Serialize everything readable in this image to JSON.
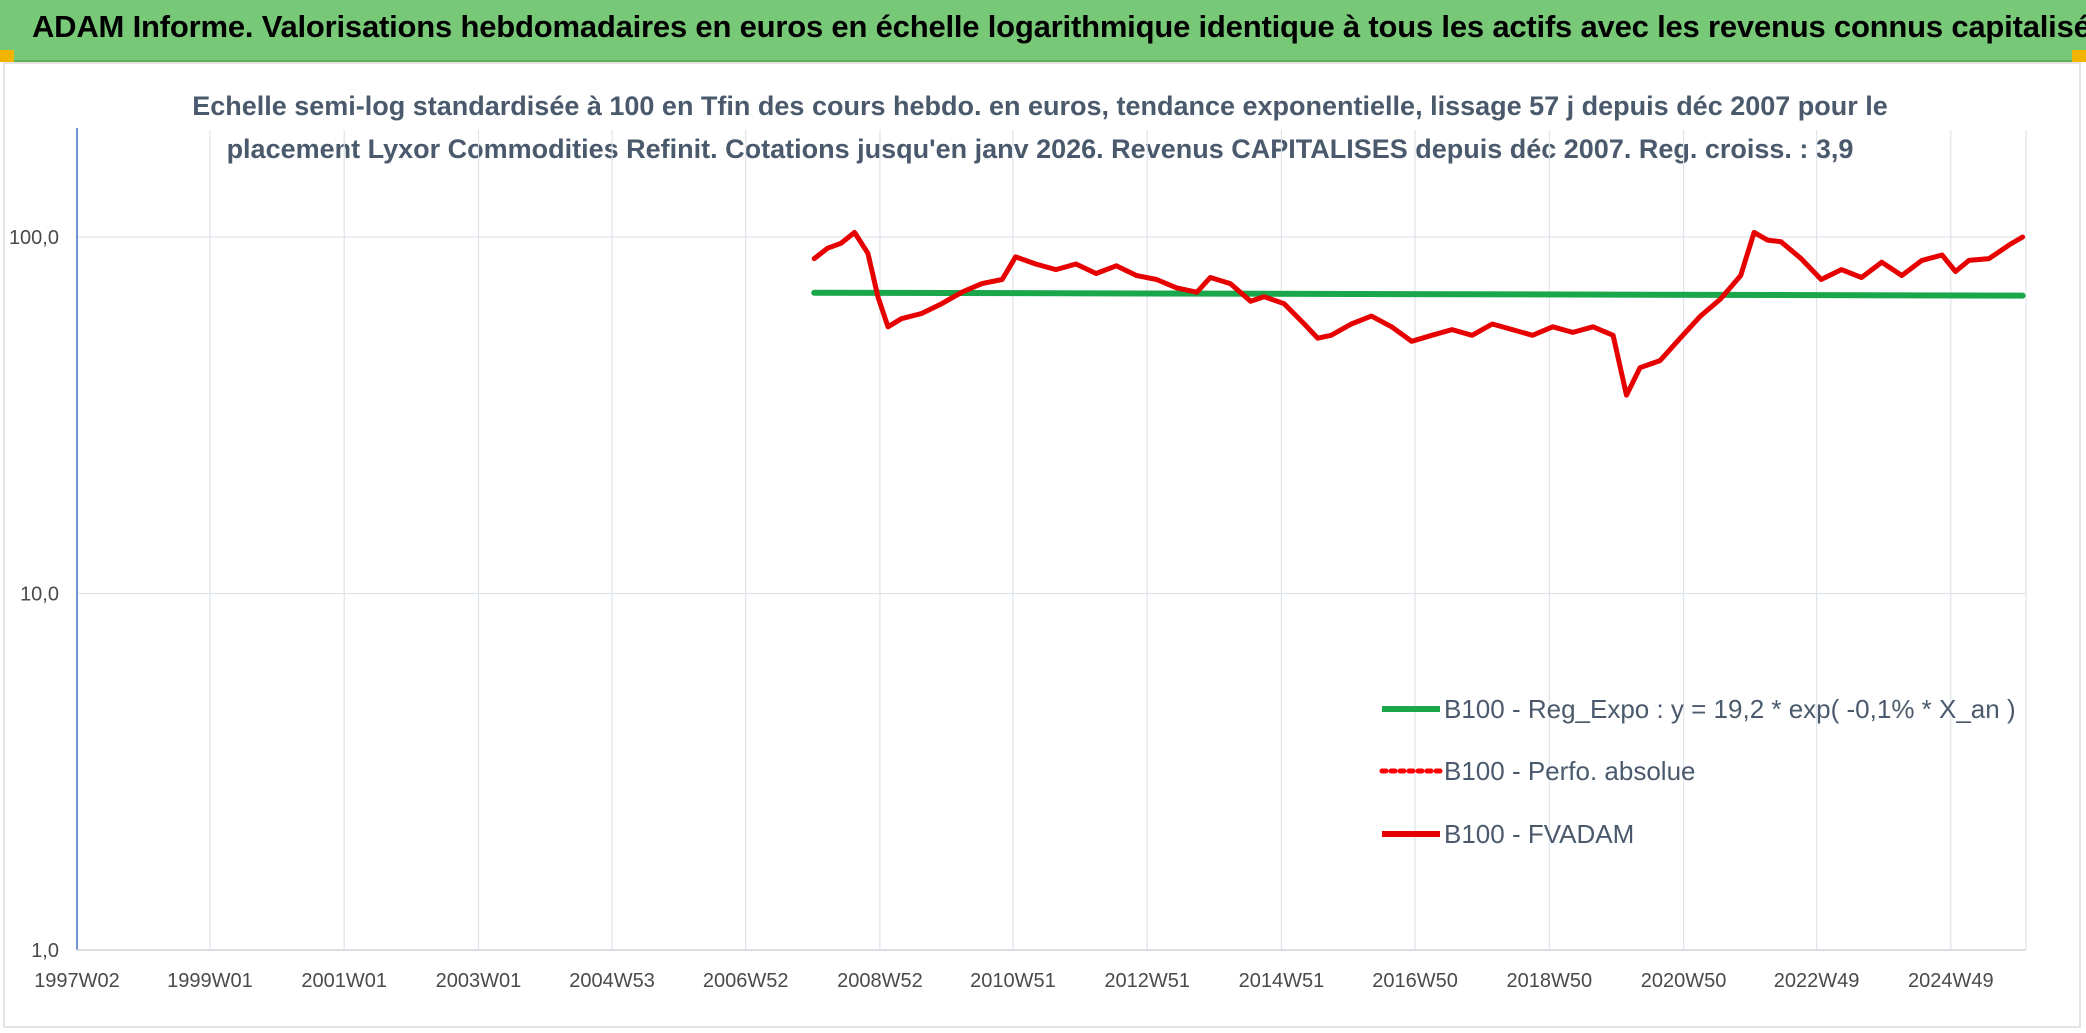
{
  "header": {
    "title": "ADAM Informe. Valorisations hebdomadaires en euros en échelle logarithmique identique à tous les actifs avec les revenus connus capitalisés",
    "background_color": "#77c877"
  },
  "chart_data": {
    "type": "line",
    "title_lines": [
      "Echelle semi-log standardisée à 100 en Tfin des cours hebdo. en euros, tendance exponentielle, lissage 57 j depuis déc 2007 pour le",
      "placement Lyxor Commodities Refinit. Cotations jusqu'en janv 2026. Revenus CAPITALISES depuis déc 2007. Reg. croiss. : 3,9"
    ],
    "y_scale": "log",
    "ylim": [
      1,
      100
    ],
    "y_ticks": [
      {
        "value": 100,
        "label": "100,0"
      },
      {
        "value": 10,
        "label": "10,0"
      },
      {
        "value": 1,
        "label": "1,0"
      }
    ],
    "x_range": [
      1997.02,
      2026.05
    ],
    "x_ticks": [
      {
        "value": 1997.02,
        "label": "1997W02"
      },
      {
        "value": 1999.0,
        "label": "1999W01"
      },
      {
        "value": 2001.0,
        "label": "2001W01"
      },
      {
        "value": 2003.0,
        "label": "2003W01"
      },
      {
        "value": 2004.99,
        "label": "2004W53"
      },
      {
        "value": 2006.98,
        "label": "2006W52"
      },
      {
        "value": 2008.98,
        "label": "2008W52"
      },
      {
        "value": 2010.96,
        "label": "2010W51"
      },
      {
        "value": 2012.96,
        "label": "2012W51"
      },
      {
        "value": 2014.96,
        "label": "2014W51"
      },
      {
        "value": 2016.95,
        "label": "2016W50"
      },
      {
        "value": 2018.95,
        "label": "2018W50"
      },
      {
        "value": 2020.95,
        "label": "2020W50"
      },
      {
        "value": 2022.93,
        "label": "2022W49"
      },
      {
        "value": 2024.93,
        "label": "2024W49"
      }
    ],
    "grid": true,
    "legend_position": "lower-right",
    "series": [
      {
        "name": "B100 - Reg_Expo : y = 19,2 * exp( -0,1% *  X_an )",
        "color": "#1aa64a",
        "style": "solid",
        "x": [
          2008.0,
          2026.0
        ],
        "y": [
          69.8,
          68.5
        ]
      },
      {
        "name": "B100 - Perfo. absolue",
        "color": "#ff0000",
        "style": "dotted",
        "x": [],
        "y": []
      },
      {
        "name": "B100 - FVADAM",
        "color": "#e60000",
        "style": "solid",
        "x": [
          2008.0,
          2008.2,
          2008.4,
          2008.6,
          2008.8,
          2008.95,
          2009.1,
          2009.3,
          2009.6,
          2009.9,
          2010.2,
          2010.5,
          2010.8,
          2011.0,
          2011.3,
          2011.6,
          2011.9,
          2012.2,
          2012.5,
          2012.8,
          2013.1,
          2013.4,
          2013.7,
          2013.9,
          2014.2,
          2014.5,
          2014.7,
          2015.0,
          2015.3,
          2015.5,
          2015.7,
          2016.0,
          2016.3,
          2016.6,
          2016.9,
          2017.2,
          2017.5,
          2017.8,
          2018.1,
          2018.4,
          2018.7,
          2019.0,
          2019.3,
          2019.6,
          2019.9,
          2020.1,
          2020.3,
          2020.6,
          2020.9,
          2021.2,
          2021.5,
          2021.8,
          2022.0,
          2022.2,
          2022.4,
          2022.7,
          2023.0,
          2023.3,
          2023.6,
          2023.9,
          2024.2,
          2024.5,
          2024.8,
          2025.0,
          2025.2,
          2025.5,
          2025.8,
          2026.0
        ],
        "y": [
          87,
          93,
          96,
          103,
          90,
          68,
          56,
          59,
          61,
          65,
          70,
          74,
          76,
          88,
          84,
          81,
          84,
          79,
          83,
          78,
          76,
          72,
          70,
          77,
          74,
          66,
          68,
          65,
          57,
          52,
          53,
          57,
          60,
          56,
          51,
          53,
          55,
          53,
          57,
          55,
          53,
          56,
          54,
          56,
          53,
          36,
          43,
          45,
          52,
          60,
          67,
          78,
          103,
          98,
          97,
          87,
          76,
          81,
          77,
          85,
          78,
          86,
          89,
          80,
          86,
          87,
          95,
          100
        ]
      }
    ]
  }
}
